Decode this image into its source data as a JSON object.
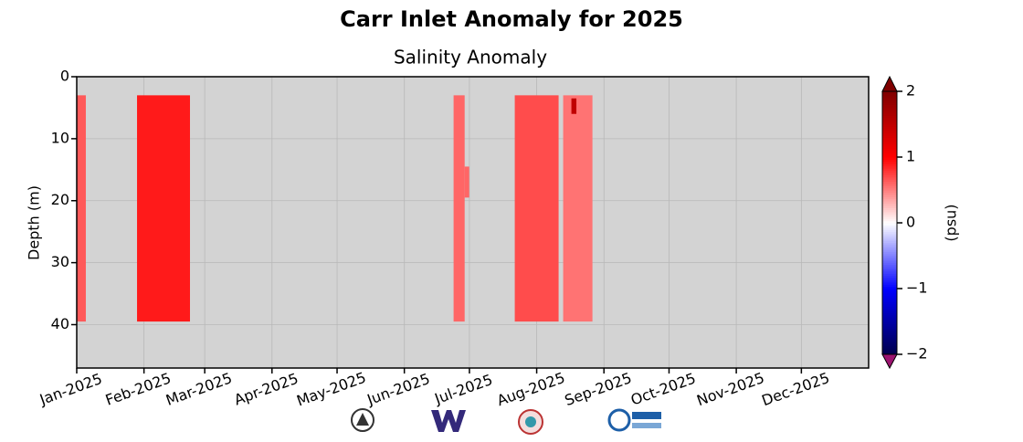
{
  "chart_data": {
    "type": "heatmap",
    "title": "Carr Inlet Anomaly for 2025",
    "subtitle": "Salinity Anomaly",
    "y_label": "Depth (m)",
    "colorbar_label": "(psu)",
    "xlim": [
      0,
      365
    ],
    "xticks": [
      {
        "value": 0,
        "label": "Jan-2025"
      },
      {
        "value": 31,
        "label": "Feb-2025"
      },
      {
        "value": 59,
        "label": "Mar-2025"
      },
      {
        "value": 90,
        "label": "Apr-2025"
      },
      {
        "value": 120,
        "label": "May-2025"
      },
      {
        "value": 151,
        "label": "Jun-2025"
      },
      {
        "value": 181,
        "label": "Jul-2025"
      },
      {
        "value": 212,
        "label": "Aug-2025"
      },
      {
        "value": 243,
        "label": "Sep-2025"
      },
      {
        "value": 273,
        "label": "Oct-2025"
      },
      {
        "value": 304,
        "label": "Nov-2025"
      },
      {
        "value": 334,
        "label": "Dec-2025"
      }
    ],
    "ylim": [
      47,
      0
    ],
    "yticks": [
      0,
      10,
      20,
      30,
      40
    ],
    "clim": [
      -2,
      2
    ],
    "cticks": [
      {
        "value": -2,
        "label": "−2"
      },
      {
        "value": -1,
        "label": "−1"
      },
      0,
      1,
      2
    ],
    "cmap": [
      "#00004c",
      "#0000ff",
      "#ffffff",
      "#ff0000",
      "#800000"
    ],
    "under_color": "#9c1470",
    "over_color": "#800000",
    "bad_color": "#d3d3d3",
    "grid": true,
    "blocks": [
      {
        "x": [
          0,
          4.2
        ],
        "depth": [
          3,
          39.5
        ],
        "value": 0.65
      },
      {
        "x": [
          27.8,
          52.2
        ],
        "depth": [
          3,
          39.5
        ],
        "value": 0.9
      },
      {
        "x": [
          173.7,
          178.8
        ],
        "depth": [
          3,
          39.5
        ],
        "value": 0.6
      },
      {
        "x": [
          178.8,
          180.9
        ],
        "depth": [
          14.5,
          19.5
        ],
        "value": 0.6
      },
      {
        "x": [
          201.9,
          222.1
        ],
        "depth": [
          3,
          39.5
        ],
        "value": 0.7
      },
      {
        "x": [
          224.2,
          237.7
        ],
        "depth": [
          3,
          39.5
        ],
        "value": 0.55
      },
      {
        "x": [
          228,
          230.3
        ],
        "depth": [
          3.5,
          6
        ],
        "value": 1.5
      }
    ]
  }
}
